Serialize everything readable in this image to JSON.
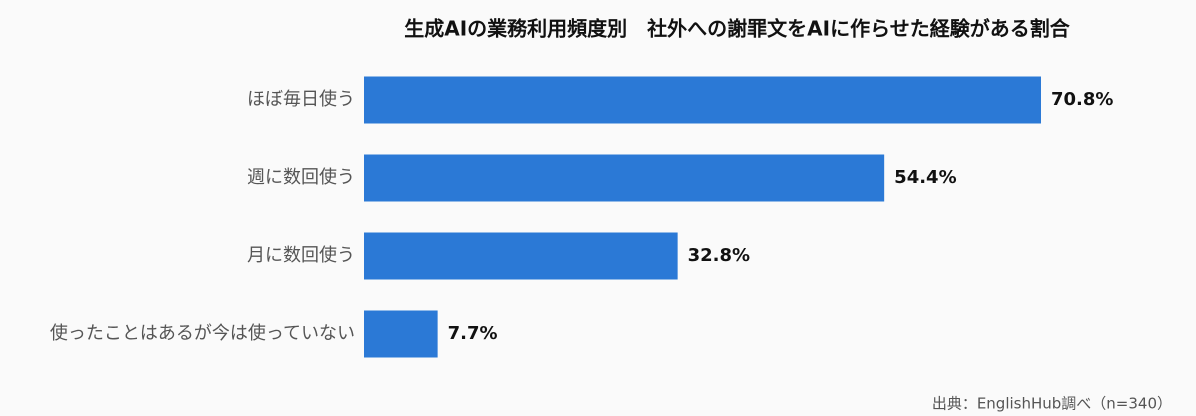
{
  "chart_data": {
    "type": "bar",
    "orientation": "horizontal",
    "title": "生成AIの業務利用頻度別　社外への謝罪文をAIに作らせた経験がある割合",
    "categories": [
      "ほぼ毎日使う",
      "週に数回使う",
      "月に数回使う",
      "使ったことはあるが今は使っていない"
    ],
    "values": [
      70.8,
      54.4,
      32.8,
      7.7
    ],
    "value_labels": [
      "70.8%",
      "54.4%",
      "32.8%",
      "7.7%"
    ],
    "color": "#2b79d6",
    "source": "出典：EnglishHub調べ（n=340）"
  }
}
